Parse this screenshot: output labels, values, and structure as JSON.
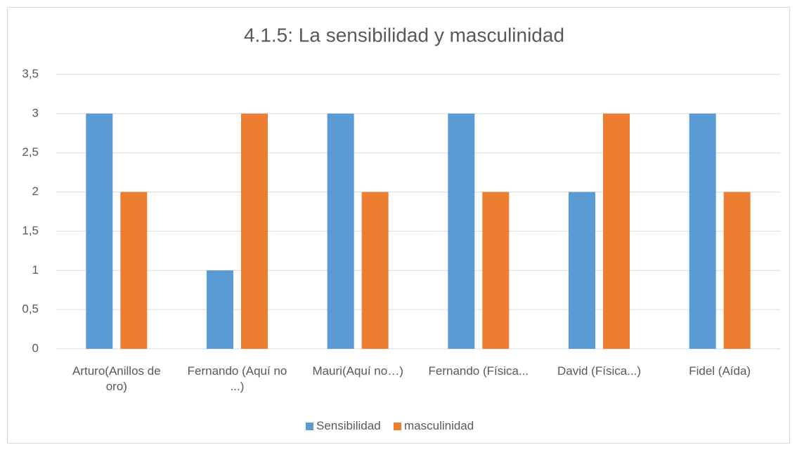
{
  "chart_data": {
    "type": "bar",
    "title": "4.1.5: La sensibilidad y masculinidad",
    "categories": [
      "Arturo(Anillos de oro)",
      "Fernando (Aquí no ...)",
      "Mauri(Aquí no…)",
      "Fernando (Física...",
      "David (Física...)",
      "Fidel (Aída)"
    ],
    "series": [
      {
        "name": "Sensibilidad",
        "color": "#5b9bd5",
        "values": [
          3,
          1,
          3,
          3,
          2,
          3
        ]
      },
      {
        "name": "masculinidad",
        "color": "#ed7d31",
        "values": [
          2,
          3,
          2,
          2,
          3,
          2
        ]
      }
    ],
    "ylim": [
      0,
      3.5
    ],
    "yticks": [
      0,
      {
        "value": 0.5,
        "label": "0,5"
      },
      1,
      {
        "value": 1.5,
        "label": "1,5"
      },
      2,
      {
        "value": 2.5,
        "label": "2,5"
      },
      3,
      {
        "value": 3.5,
        "label": "3,5"
      }
    ],
    "grid": true,
    "legend": "bottom"
  }
}
